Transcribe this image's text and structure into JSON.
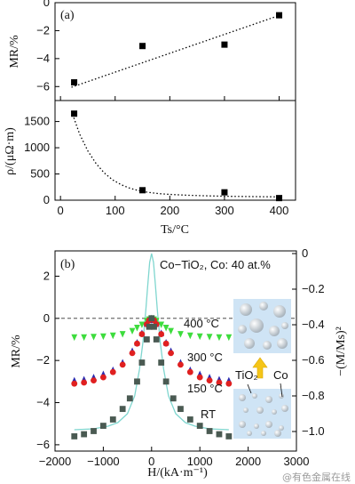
{
  "watermark": "@有色金属在线",
  "chart_data": [
    {
      "panel": "(a)",
      "type": "scatter",
      "ylabel": "MR/%",
      "xlim": [
        -10,
        430
      ],
      "ylim": [
        -7,
        0
      ],
      "yticks": [
        0,
        -2,
        -4,
        -6
      ],
      "series": [
        {
          "x": [
            25,
            150,
            300,
            400
          ],
          "y": [
            -5.7,
            -3.1,
            -3.0,
            -0.9
          ]
        }
      ],
      "fit_line": {
        "x": [
          20,
          405
        ],
        "y": [
          -6.05,
          -0.85
        ],
        "style": "dotted"
      }
    },
    {
      "type": "scatter",
      "ylabel": "ρ/(μΩ·m)",
      "xlabel": "Ts/°C",
      "xlim": [
        -10,
        430
      ],
      "ylim": [
        0,
        1900
      ],
      "xticks": [
        0,
        100,
        200,
        300,
        400
      ],
      "yticks": [
        0,
        500,
        1000,
        1500
      ],
      "series": [
        {
          "x": [
            25,
            150,
            300,
            400
          ],
          "y": [
            1650,
            190,
            150,
            40
          ]
        }
      ],
      "fit_curve": {
        "x": [
          20,
          35,
          50,
          65,
          80,
          95,
          110,
          125,
          140,
          160,
          180,
          200,
          230,
          260,
          300,
          340,
          380,
          405
        ],
        "y": [
          1700,
          1260,
          940,
          700,
          520,
          390,
          300,
          235,
          190,
          150,
          125,
          110,
          95,
          85,
          75,
          70,
          65,
          62
        ],
        "style": "dotted"
      }
    },
    {
      "panel": "(b)",
      "type": "scatter",
      "title": "Co−TiO₂, Co: 40 at.%",
      "xlabel": "H/(kA·m⁻¹)",
      "ylabel": "MR/%",
      "y2label": "−(M/Ms)²",
      "xlim": [
        -2000,
        3000
      ],
      "ylim": [
        -6.3,
        3.2
      ],
      "xticks": [
        -2000,
        -1000,
        0,
        1000,
        2000,
        3000
      ],
      "yticks": [
        2,
        0,
        -2,
        -4,
        -6
      ],
      "y2lim": [
        -1.05,
        0
      ],
      "y2ticks": [
        0,
        -0.2,
        -0.4,
        -0.6,
        -0.8,
        -1.0
      ],
      "series": [
        {
          "name": "400 °C",
          "color": "#3ddc3d",
          "marker": "triangle-down",
          "x": [
            -1600,
            -1400,
            -1200,
            -1000,
            -800,
            -600,
            -400,
            -300,
            -200,
            -100,
            -50,
            0,
            50,
            100,
            200,
            300,
            400,
            600,
            800,
            1000,
            1200,
            1400,
            1600
          ],
          "y": [
            -0.9,
            -0.9,
            -0.88,
            -0.86,
            -0.82,
            -0.75,
            -0.6,
            -0.45,
            -0.3,
            -0.12,
            -0.05,
            0,
            -0.05,
            -0.12,
            -0.3,
            -0.45,
            -0.6,
            -0.75,
            -0.82,
            -0.86,
            -0.88,
            -0.9,
            -0.9
          ]
        },
        {
          "name": "300 °C",
          "color": "#2b2bb0",
          "marker": "triangle-up",
          "x": [
            -1600,
            -1400,
            -1200,
            -1000,
            -800,
            -600,
            -400,
            -300,
            -200,
            -100,
            -50,
            0,
            50,
            100,
            200,
            300,
            400,
            600,
            800,
            1000,
            1200,
            1400,
            1600
          ],
          "y": [
            -2.95,
            -2.9,
            -2.8,
            -2.65,
            -2.45,
            -2.1,
            -1.55,
            -1.15,
            -0.7,
            -0.25,
            -0.08,
            0,
            -0.08,
            -0.25,
            -0.7,
            -1.15,
            -1.55,
            -2.1,
            -2.45,
            -2.65,
            -2.8,
            -2.9,
            -2.95
          ]
        },
        {
          "name": "150 °C",
          "color": "#e02020",
          "marker": "circle",
          "x": [
            -1600,
            -1400,
            -1200,
            -1000,
            -800,
            -600,
            -400,
            -300,
            -200,
            -100,
            -50,
            0,
            50,
            100,
            200,
            300,
            400,
            600,
            800,
            1000,
            1200,
            1400,
            1600
          ],
          "y": [
            -3.1,
            -3.05,
            -2.95,
            -2.8,
            -2.55,
            -2.2,
            -1.65,
            -1.2,
            -0.75,
            -0.28,
            -0.09,
            0,
            -0.09,
            -0.28,
            -0.75,
            -1.2,
            -1.65,
            -2.2,
            -2.55,
            -2.8,
            -2.95,
            -3.05,
            -3.1
          ]
        },
        {
          "name": "RT",
          "color": "#4a5a52",
          "marker": "square",
          "x": [
            -1600,
            -1400,
            -1200,
            -1000,
            -800,
            -600,
            -450,
            -300,
            -200,
            -100,
            -50,
            0,
            50,
            100,
            200,
            300,
            450,
            600,
            800,
            1000,
            1200,
            1400,
            1600
          ],
          "y": [
            -5.6,
            -5.5,
            -5.35,
            -5.1,
            -4.8,
            -4.3,
            -3.8,
            -3.0,
            -2.1,
            -1.0,
            -0.4,
            0,
            -0.4,
            -1.0,
            -2.1,
            -3.0,
            -3.8,
            -4.3,
            -4.8,
            -5.1,
            -5.35,
            -5.5,
            -5.6
          ]
        }
      ],
      "magnetization_curve": {
        "axis": "right",
        "color": "#7fd6cf",
        "x": [
          -1600,
          -1200,
          -900,
          -700,
          -500,
          -350,
          -250,
          -180,
          -120,
          -80,
          -40,
          0,
          40,
          80,
          120,
          180,
          250,
          350,
          500,
          700,
          900,
          1200,
          1600
        ],
        "y": [
          -0.99,
          -0.985,
          -0.97,
          -0.95,
          -0.9,
          -0.8,
          -0.65,
          -0.5,
          -0.32,
          -0.18,
          -0.05,
          0,
          -0.05,
          -0.18,
          -0.32,
          -0.5,
          -0.65,
          -0.8,
          -0.9,
          -0.95,
          -0.97,
          -0.985,
          -0.99
        ]
      },
      "inset_labels": {
        "tio2": "TiO₂",
        "co": "Co"
      }
    }
  ]
}
